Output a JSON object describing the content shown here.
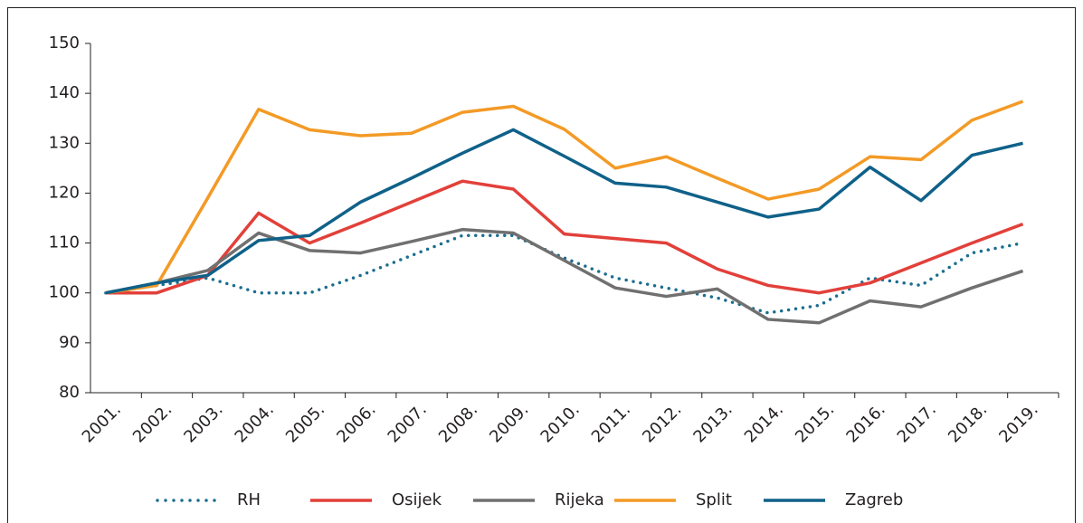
{
  "chart_data": {
    "type": "line",
    "categories": [
      "2001.",
      "2002.",
      "2003.",
      "2004.",
      "2005.",
      "2006.",
      "2007.",
      "2008.",
      "2009.",
      "2010.",
      "2011.",
      "2012.",
      "2013.",
      "2014.",
      "2015.",
      "2016.",
      "2017.",
      "2018.",
      "2019."
    ],
    "series": [
      {
        "name": "RH",
        "color": "#1a6e8e",
        "dashed": true,
        "values": [
          100,
          101.5,
          103,
          100,
          100,
          103.5,
          107.5,
          111.5,
          111.5,
          107,
          103,
          101,
          99,
          96,
          97.5,
          103,
          101.5,
          108,
          110
        ]
      },
      {
        "name": "Osijek",
        "color": "#e2403a",
        "values": [
          100,
          100,
          103.5,
          116,
          110,
          114,
          118.2,
          122.4,
          120.8,
          111.8,
          110.9,
          110,
          104.8,
          101.5,
          100,
          102,
          106,
          110,
          113.8
        ]
      },
      {
        "name": "Rijeka",
        "color": "#707070",
        "values": [
          100,
          102,
          104.5,
          112,
          108.5,
          108,
          110.3,
          112.7,
          112,
          106.5,
          101,
          99.3,
          100.8,
          94.7,
          94,
          98.4,
          97.2,
          101,
          104.4
        ]
      },
      {
        "name": "Split",
        "color": "#f39a26",
        "values": [
          100,
          101.5,
          119,
          136.8,
          132.7,
          131.5,
          132,
          136.2,
          137.4,
          132.8,
          125,
          127.3,
          123,
          118.8,
          120.8,
          127.3,
          126.7,
          134.6,
          138.4
        ]
      },
      {
        "name": "Zagreb",
        "color": "#0f6189",
        "values": [
          100,
          102,
          103.5,
          110.5,
          111.5,
          118.2,
          123,
          128,
          132.7,
          127.4,
          122,
          121.2,
          118.2,
          115.2,
          116.8,
          125.2,
          118.5,
          127.6,
          130
        ]
      }
    ],
    "ylim": [
      80,
      150
    ],
    "yticks": [
      80,
      90,
      100,
      110,
      120,
      130,
      140,
      150
    ],
    "legend": "bottom"
  }
}
